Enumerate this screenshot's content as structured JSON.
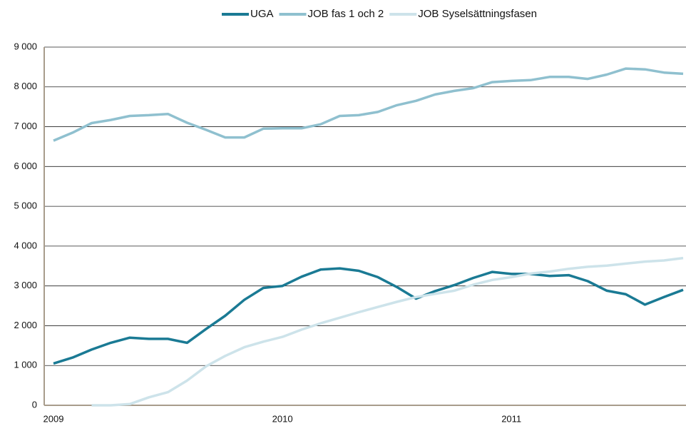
{
  "chart_data": {
    "type": "line",
    "categories": [
      "2009",
      null,
      null,
      null,
      null,
      null,
      null,
      null,
      null,
      null,
      null,
      null,
      "2010",
      null,
      null,
      null,
      null,
      null,
      null,
      null,
      null,
      null,
      null,
      null,
      "2011",
      null,
      null,
      null,
      null,
      null,
      null,
      null,
      null,
      null
    ],
    "series": [
      {
        "name": "UGA",
        "color": "#1a7a94",
        "values": [
          1050,
          1200,
          1400,
          1570,
          1700,
          1670,
          1670,
          1570,
          1920,
          2250,
          2650,
          2950,
          3000,
          3230,
          3410,
          3440,
          3380,
          3220,
          2970,
          2680,
          2870,
          3020,
          3200,
          3350,
          3300,
          3300,
          3250,
          3270,
          3120,
          2880,
          2790,
          2530,
          2720,
          2900
        ]
      },
      {
        "name": "JOB fas 1 och 2",
        "color": "#8fc0cf",
        "values": [
          6650,
          6850,
          7090,
          7170,
          7270,
          7290,
          7320,
          7100,
          6920,
          6730,
          6730,
          6950,
          6960,
          6960,
          7060,
          7270,
          7290,
          7370,
          7540,
          7650,
          7810,
          7900,
          7970,
          8120,
          8150,
          8170,
          8250,
          8250,
          8200,
          8310,
          8460,
          8440,
          8360,
          8330
        ]
      },
      {
        "name": "JOB Syselsättningsfasen",
        "color": "#cde3ea",
        "values": [
          null,
          null,
          0,
          0,
          30,
          200,
          330,
          620,
          980,
          1240,
          1460,
          1600,
          1720,
          1900,
          2060,
          2200,
          2340,
          2470,
          2600,
          2720,
          2800,
          2880,
          3030,
          3150,
          3220,
          3310,
          3360,
          3430,
          3480,
          3510,
          3560,
          3610,
          3640,
          3700
        ]
      }
    ],
    "ylim": [
      0,
      9000
    ],
    "yticks": [
      0,
      {
        "value": 1000,
        "label": "1 000"
      },
      {
        "value": 2000,
        "label": "2 000"
      },
      {
        "value": 3000,
        "label": "3 000"
      },
      {
        "value": 4000,
        "label": "4 000"
      },
      {
        "value": 5000,
        "label": "5 000"
      },
      {
        "value": 6000,
        "label": "6 000"
      },
      {
        "value": 7000,
        "label": "7 000"
      },
      {
        "value": 8000,
        "label": "8 000"
      },
      {
        "value": 9000,
        "label": "9 000"
      }
    ],
    "grid": true,
    "legend": "top"
  }
}
